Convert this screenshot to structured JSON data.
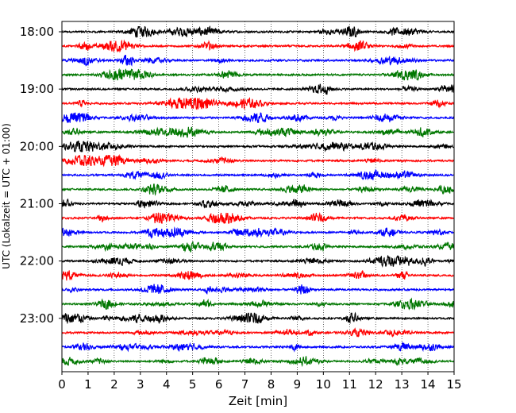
{
  "chart_data": {
    "type": "line",
    "title": "",
    "xlabel": "Zeit  [min]",
    "ylabel": "UTC (Lokalzeit = UTC + 01:00)",
    "xlim": [
      0,
      15
    ],
    "x_ticks": [
      "0",
      "1",
      "2",
      "3",
      "4",
      "5",
      "6",
      "7",
      "8",
      "9",
      "10",
      "11",
      "12",
      "13",
      "14",
      "15"
    ],
    "y_ticks": [
      "18:00",
      "19:00",
      "20:00",
      "21:00",
      "22:00",
      "23:00"
    ],
    "grid": "vertical dotted",
    "legend": "none",
    "trace_colors": [
      "#000000",
      "#ff0000",
      "#0000ff",
      "#007700"
    ],
    "trace_start_times": [
      "18:00",
      "18:15",
      "18:30",
      "18:45",
      "19:00",
      "19:15",
      "19:30",
      "19:45",
      "20:00",
      "20:15",
      "20:30",
      "20:45",
      "21:00",
      "21:15",
      "21:30",
      "21:45",
      "22:00",
      "22:15",
      "22:30",
      "22:45",
      "23:00",
      "23:15",
      "23:30",
      "23:45"
    ],
    "trace_minutes": 15
  }
}
